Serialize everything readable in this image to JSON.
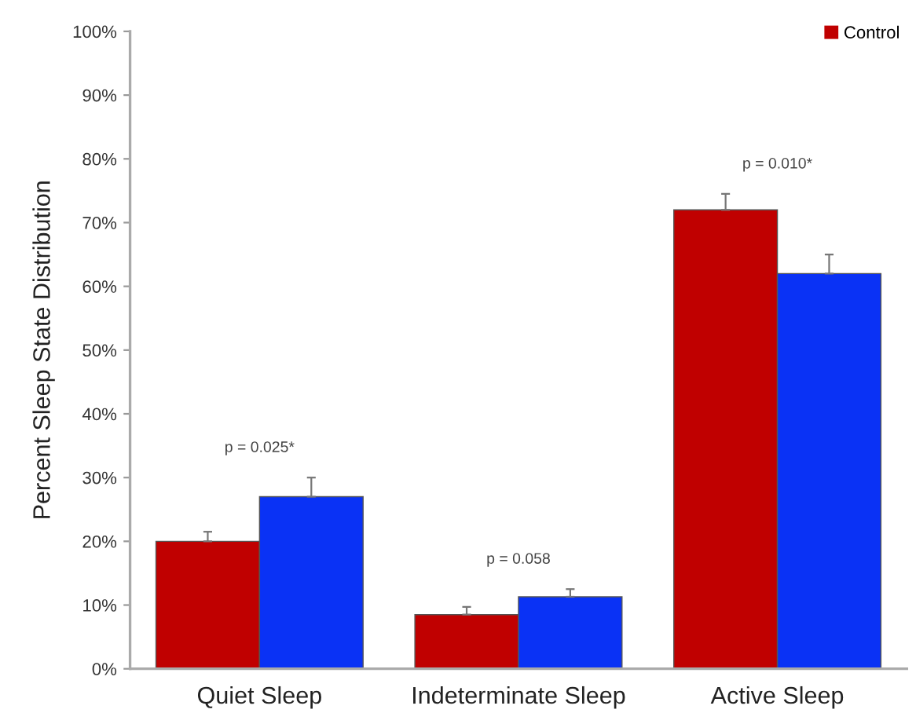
{
  "chart_data": {
    "type": "bar",
    "ylabel": "Percent Sleep State Distribution",
    "categories": [
      "Quiet Sleep",
      "Indeterminate Sleep",
      "Active Sleep"
    ],
    "series": [
      {
        "name": "Control",
        "color": "#c00000",
        "values": [
          20,
          8.5,
          72
        ],
        "errors": [
          [
            20,
            21.5
          ],
          [
            8.5,
            9.7
          ],
          [
            72,
            74.5
          ]
        ]
      },
      {
        "color": "#0a32f5",
        "values": [
          27,
          11.3,
          62
        ],
        "errors": [
          [
            27,
            30
          ],
          [
            11.3,
            12.5
          ],
          [
            62,
            65
          ]
        ]
      }
    ],
    "ylim": [
      0,
      100
    ],
    "yticks": [
      {
        "value": 0,
        "label": "0%"
      },
      {
        "value": 10,
        "label": "10%"
      },
      {
        "value": 20,
        "label": "20%"
      },
      {
        "value": 30,
        "label": "30%"
      },
      {
        "value": 40,
        "label": "40%"
      },
      {
        "value": 50,
        "label": "50%"
      },
      {
        "value": 60,
        "label": "60%"
      },
      {
        "value": 70,
        "label": "70%"
      },
      {
        "value": 80,
        "label": "80%"
      },
      {
        "value": 90,
        "label": "90%"
      },
      {
        "value": 100,
        "label": "100%"
      }
    ],
    "annotations": [
      "p = 0.025*",
      "p = 0.058",
      "p = 0.010*"
    ],
    "legend": "top right",
    "grid": false
  }
}
